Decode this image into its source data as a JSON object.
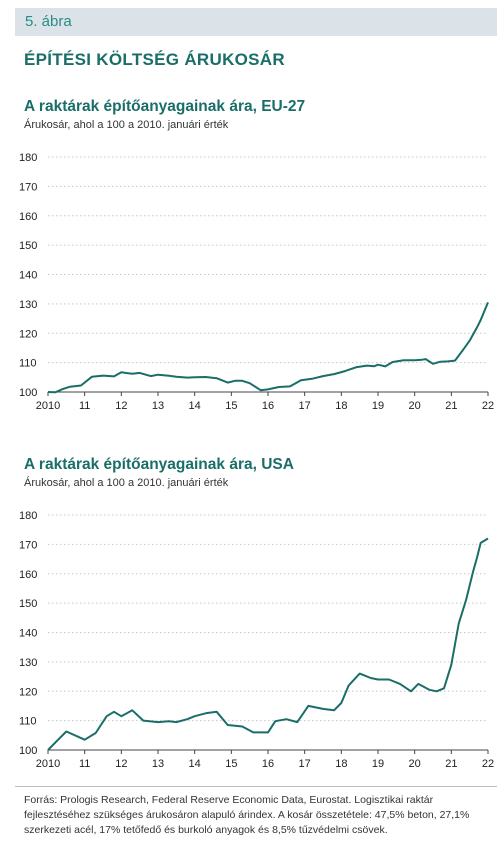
{
  "figure_label": "5. ábra",
  "main_title": "ÉPÍTÉSI KÖLTSÉG ÁRUKOSÁR",
  "source": "Forrás: Prologis Research, Federal Reserve Economic Data, Eurostat. Logisztikai raktár fejlesztéséhez szükséges árukosáron alapuló árindex. A kosár összetétele: 47,5% beton, 27,1% szerkezeti acél, 17% tetőfedő és burkoló anyagok és 8,5% tűzvédelmi csövek.",
  "colors": {
    "line": "#1a6e68",
    "title": "#1a6e68",
    "label": "#2a8c84",
    "bar": "#dce3e8"
  },
  "chart_data": [
    {
      "type": "line",
      "title": "A raktárak építőanyagainak ára, EU-27",
      "subtitle": "Árukosár, ahol a 100 a 2010. januári érték",
      "xlabel": "",
      "ylabel": "",
      "xlim": [
        2010,
        2022
      ],
      "ylim": [
        100,
        180
      ],
      "y_ticks": [
        100,
        110,
        120,
        130,
        140,
        150,
        160,
        170,
        180
      ],
      "x_ticks": [
        "2010",
        "11",
        "12",
        "13",
        "14",
        "15",
        "16",
        "17",
        "18",
        "19",
        "20",
        "21",
        "22"
      ],
      "grid": true,
      "x": [
        2010.0,
        2010.2,
        2010.4,
        2010.6,
        2010.9,
        2011.2,
        2011.5,
        2011.8,
        2012.0,
        2012.3,
        2012.5,
        2012.8,
        2013.0,
        2013.3,
        2013.5,
        2013.8,
        2014.0,
        2014.3,
        2014.6,
        2014.9,
        2015.1,
        2015.3,
        2015.5,
        2015.8,
        2016.0,
        2016.3,
        2016.6,
        2016.9,
        2017.2,
        2017.5,
        2017.8,
        2018.1,
        2018.4,
        2018.7,
        2018.9,
        2019.0,
        2019.2,
        2019.4,
        2019.7,
        2020.0,
        2020.2,
        2020.3,
        2020.5,
        2020.7,
        2020.9,
        2021.1,
        2021.3,
        2021.5,
        2021.7,
        2021.8,
        2022.0
      ],
      "values": [
        100,
        99.9,
        101,
        101.8,
        102.2,
        105.2,
        105.6,
        105.3,
        106.7,
        106.2,
        106.5,
        105.4,
        105.9,
        105.5,
        105.2,
        104.9,
        105.0,
        105.1,
        104.7,
        103.2,
        103.8,
        103.8,
        103.0,
        100.6,
        100.9,
        101.7,
        101.9,
        104.0,
        104.5,
        105.4,
        106.1,
        107.1,
        108.4,
        109.0,
        108.8,
        109.3,
        108.7,
        110.2,
        110.8,
        110.8,
        111.0,
        111.2,
        109.6,
        110.3,
        110.4,
        110.7,
        114.0,
        117.5,
        122.0,
        124.5,
        130.5
      ]
    },
    {
      "type": "line",
      "title": "A raktárak építőanyagainak ára, USA",
      "subtitle": "Árukosár, ahol a 100 a 2010. januári érték",
      "xlabel": "",
      "ylabel": "",
      "xlim": [
        2010,
        2022
      ],
      "ylim": [
        100,
        180
      ],
      "y_ticks": [
        100,
        110,
        120,
        130,
        140,
        150,
        160,
        170,
        180
      ],
      "x_ticks": [
        "2010",
        "11",
        "12",
        "13",
        "14",
        "15",
        "16",
        "17",
        "18",
        "19",
        "20",
        "21",
        "22"
      ],
      "grid": true,
      "x": [
        2010.0,
        2010.3,
        2010.5,
        2011.0,
        2011.3,
        2011.6,
        2011.8,
        2012.0,
        2012.3,
        2012.6,
        2013.0,
        2013.3,
        2013.5,
        2013.8,
        2014.0,
        2014.3,
        2014.6,
        2014.9,
        2015.3,
        2015.6,
        2016.0,
        2016.2,
        2016.5,
        2016.8,
        2017.1,
        2017.3,
        2017.5,
        2017.8,
        2018.0,
        2018.2,
        2018.5,
        2018.8,
        2019.0,
        2019.3,
        2019.6,
        2019.9,
        2020.1,
        2020.4,
        2020.6,
        2020.8,
        2021.0,
        2021.2,
        2021.4,
        2021.6,
        2021.7,
        2021.8,
        2022.0
      ],
      "values": [
        100,
        103.8,
        106.3,
        103.5,
        105.8,
        111.5,
        113.0,
        111.5,
        113.5,
        110.0,
        109.5,
        109.8,
        109.5,
        110.5,
        111.5,
        112.5,
        113.0,
        108.5,
        108.0,
        106.0,
        106.0,
        109.8,
        110.5,
        109.5,
        115.0,
        114.5,
        114.0,
        113.5,
        116.0,
        122.0,
        126.0,
        124.5,
        124.0,
        124.0,
        122.5,
        120.0,
        122.5,
        120.5,
        120.0,
        121.0,
        129.0,
        143.0,
        151.0,
        161.0,
        165.5,
        170.5,
        172.0
      ]
    }
  ]
}
